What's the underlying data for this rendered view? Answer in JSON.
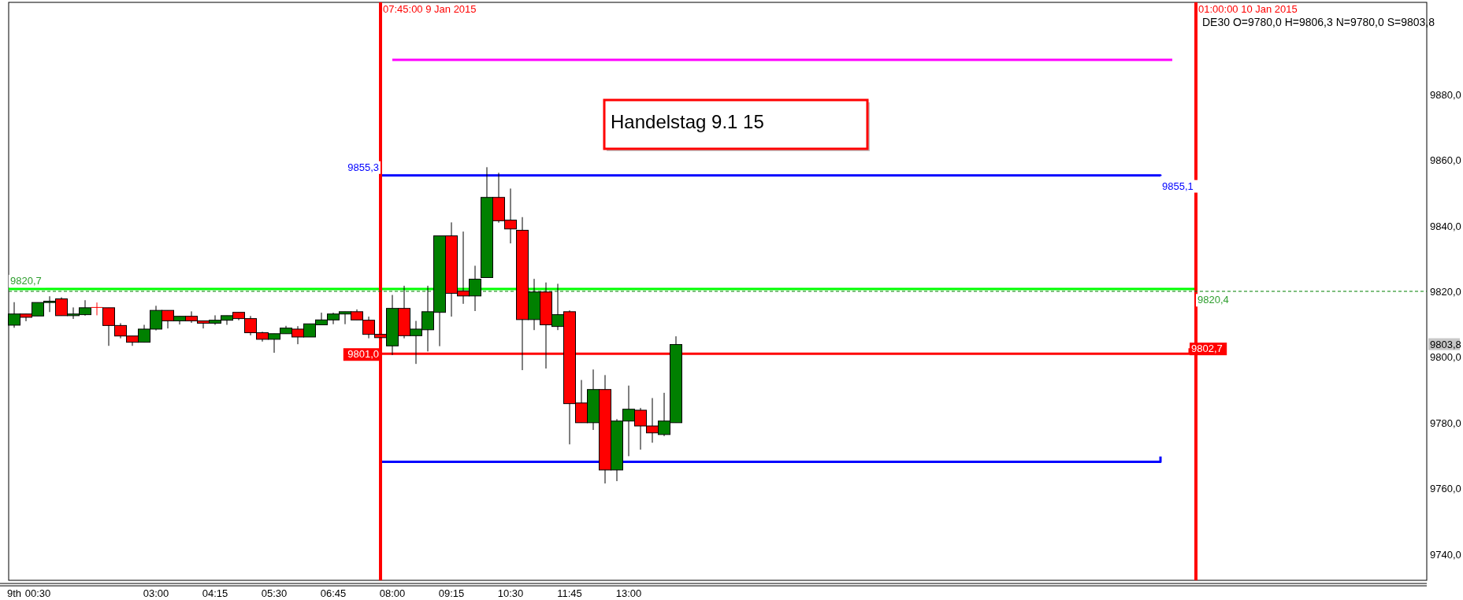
{
  "chart_data": {
    "type": "candlestick",
    "title": "DE30 O=9780,0 H=9806,3 N=9780,0 S=9803,8",
    "x": [
      "2015-01-09T00:00",
      "2015-01-09T00:15",
      "2015-01-09T00:30",
      "2015-01-09T00:45",
      "2015-01-09T01:00",
      "2015-01-09T01:15",
      "2015-01-09T01:30",
      "2015-01-09T01:45",
      "2015-01-09T02:00",
      "2015-01-09T02:15",
      "2015-01-09T02:30",
      "2015-01-09T02:45",
      "2015-01-09T03:00",
      "2015-01-09T03:15",
      "2015-01-09T03:30",
      "2015-01-09T03:45",
      "2015-01-09T04:00",
      "2015-01-09T04:15",
      "2015-01-09T04:30",
      "2015-01-09T04:45",
      "2015-01-09T05:00",
      "2015-01-09T05:15",
      "2015-01-09T05:30",
      "2015-01-09T05:45",
      "2015-01-09T06:00",
      "2015-01-09T06:15",
      "2015-01-09T06:30",
      "2015-01-09T06:45",
      "2015-01-09T07:00",
      "2015-01-09T07:15",
      "2015-01-09T07:30",
      "2015-01-09T07:45",
      "2015-01-09T08:00",
      "2015-01-09T08:15",
      "2015-01-09T08:30",
      "2015-01-09T08:45",
      "2015-01-09T09:00",
      "2015-01-09T09:15",
      "2015-01-09T09:30",
      "2015-01-09T09:45",
      "2015-01-09T10:00",
      "2015-01-09T10:15",
      "2015-01-09T10:30",
      "2015-01-09T10:45",
      "2015-01-09T11:00",
      "2015-01-09T11:15",
      "2015-01-09T11:30",
      "2015-01-09T11:45",
      "2015-01-09T12:00",
      "2015-01-09T12:15",
      "2015-01-09T12:30",
      "2015-01-09T12:45",
      "2015-01-09T13:00",
      "2015-01-09T13:15",
      "2015-01-09T13:30",
      "2015-01-09T13:45",
      "2015-01-09T14:00"
    ],
    "ohlc": [
      [
        9809.7,
        9816.7,
        9808.9,
        9813.1
      ],
      [
        9813.1,
        9813.1,
        9810.9,
        9812.1
      ],
      [
        9812.5,
        9816.6,
        9812.5,
        9816.6
      ],
      [
        9816.6,
        9818.5,
        9813.7,
        9817.0
      ],
      [
        9817.7,
        9818.2,
        9812.6,
        9812.6
      ],
      [
        9812.6,
        9815.1,
        9811.6,
        9813.1
      ],
      [
        9812.9,
        9817.3,
        9812.6,
        9815.0
      ],
      [
        9815.1,
        9816.6,
        9812.7,
        9815.1
      ],
      [
        9815.0,
        9815.0,
        9803.4,
        9809.6
      ],
      [
        9809.6,
        9810.3,
        9805.7,
        9806.4
      ],
      [
        9806.4,
        9806.4,
        9803.4,
        9804.5
      ],
      [
        9804.5,
        9809.8,
        9804.5,
        9808.5
      ],
      [
        9808.5,
        9815.6,
        9808.1,
        9814.2
      ],
      [
        9814.2,
        9814.2,
        9808.7,
        9811.0
      ],
      [
        9811.0,
        9812.4,
        9809.9,
        9812.4
      ],
      [
        9812.4,
        9813.9,
        9810.4,
        9811.0
      ],
      [
        9811.0,
        9811.0,
        9808.7,
        9810.3
      ],
      [
        9810.3,
        9812.7,
        9809.8,
        9811.2
      ],
      [
        9811.2,
        9812.6,
        9809.8,
        9812.6
      ],
      [
        9813.6,
        9813.6,
        9811.2,
        9811.7
      ],
      [
        9811.7,
        9812.5,
        9806.6,
        9807.4
      ],
      [
        9807.4,
        9807.7,
        9804.7,
        9805.4
      ],
      [
        9805.4,
        9807.1,
        9801.3,
        9807.1
      ],
      [
        9807.1,
        9809.5,
        9807.1,
        9808.8
      ],
      [
        9808.5,
        9809.4,
        9803.9,
        9806.1
      ],
      [
        9806.1,
        9810.1,
        9806.1,
        9810.1
      ],
      [
        9809.8,
        9813.5,
        9809.8,
        9811.3
      ],
      [
        9811.3,
        9813.5,
        9810.0,
        9813.1
      ],
      [
        9813.1,
        9813.8,
        9810.0,
        9813.8
      ],
      [
        9813.8,
        9814.5,
        9811.3,
        9811.3
      ],
      [
        9811.2,
        9812.3,
        9805.7,
        9806.9
      ],
      [
        9806.9,
        9806.9,
        9805.9,
        9805.9
      ],
      [
        9803.4,
        9818.9,
        9800.6,
        9814.8
      ],
      [
        9814.8,
        9821.7,
        9805.7,
        9806.5
      ],
      [
        9806.5,
        9811.0,
        9797.9,
        9808.5
      ],
      [
        9808.3,
        9821.7,
        9801.7,
        9813.8
      ],
      [
        9813.6,
        9836.9,
        9803.3,
        9836.9
      ],
      [
        9836.9,
        9841.0,
        9812.3,
        9819.4
      ],
      [
        9820.1,
        9838.2,
        9816.2,
        9818.6
      ],
      [
        9818.6,
        9827.8,
        9814.0,
        9823.7
      ],
      [
        9824.2,
        9857.8,
        9824.2,
        9848.6
      ],
      [
        9848.6,
        9856.1,
        9840.9,
        9841.5
      ],
      [
        9841.7,
        9851.3,
        9834.6,
        9839.0
      ],
      [
        9838.6,
        9842.6,
        9796.0,
        9811.4
      ],
      [
        9811.4,
        9823.8,
        9808.2,
        9819.8
      ],
      [
        9819.8,
        9822.7,
        9796.5,
        9809.8
      ],
      [
        9809.3,
        9822.3,
        9808.2,
        9812.9
      ],
      [
        9813.8,
        9814.2,
        9773.4,
        9785.8
      ],
      [
        9786.0,
        9793.0,
        9780.0,
        9780.0
      ],
      [
        9780.0,
        9796.2,
        9777.8,
        9790.1
      ],
      [
        9790.1,
        9794.5,
        9761.5,
        9765.6
      ],
      [
        9765.6,
        9781.1,
        9762.2,
        9780.5
      ],
      [
        9780.5,
        9791.3,
        9769.8,
        9784.1
      ],
      [
        9783.8,
        9784.5,
        9771.8,
        9779.0
      ],
      [
        9779.0,
        9787.5,
        9773.9,
        9776.9
      ],
      [
        9776.4,
        9789.1,
        9775.9,
        9780.5
      ],
      [
        9780.0,
        9806.3,
        9780.0,
        9803.8
      ]
    ],
    "series": [
      {
        "type": "line",
        "color": "#ff00ff",
        "x": [
          "2015-01-09T08:00",
          "2015-01-10T00:30"
        ],
        "values": [
          9890.5,
          9890.5
        ]
      },
      {
        "type": "line",
        "color": "#0000ff",
        "x": [
          "2015-01-09T07:45",
          "2015-01-10T00:15"
        ],
        "values": [
          9855.3,
          9855.1
        ]
      },
      {
        "type": "line",
        "color": "#00ff00",
        "x": [
          "2015-01-08T23:53",
          "2015-01-10T01:00"
        ],
        "values": [
          9820.7,
          9820.4
        ]
      },
      {
        "type": "line",
        "color": "#ff0000",
        "x": [
          "2015-01-09T07:45",
          "2015-01-10T00:52"
        ],
        "values": [
          9801.0,
          9802.7
        ]
      },
      {
        "type": "line",
        "color": "#0000ff",
        "x": [
          "2015-01-09T07:45",
          "2015-01-10T00:15"
        ],
        "values": [
          9768.1,
          9769.7
        ]
      }
    ],
    "xlim": [
      "2015-01-08T23:53",
      "2015-01-10T05:53"
    ],
    "ylim": [
      9732,
      9908
    ],
    "xticks": [
      {
        "value": "2015-01-09T00:00",
        "label": "9th"
      },
      {
        "value": "2015-01-09T00:30",
        "label": "00:30"
      },
      {
        "value": "2015-01-09T03:00",
        "label": "03:00"
      },
      {
        "value": "2015-01-09T04:15",
        "label": "04:15"
      },
      {
        "value": "2015-01-09T05:30",
        "label": "05:30"
      },
      {
        "value": "2015-01-09T06:45",
        "label": "06:45"
      },
      {
        "value": "2015-01-09T08:00",
        "label": "08:00"
      },
      {
        "value": "2015-01-09T09:15",
        "label": "09:15"
      },
      {
        "value": "2015-01-09T10:30",
        "label": "10:30"
      },
      {
        "value": "2015-01-09T11:45",
        "label": "11:45"
      },
      {
        "value": "2015-01-09T13:00",
        "label": "13:00"
      }
    ],
    "yticks": [
      {
        "value": 9740,
        "label": "9740,0"
      },
      {
        "value": 9760,
        "label": "9760,0"
      },
      {
        "value": 9780,
        "label": "9780,0"
      },
      {
        "value": 9800,
        "label": "9800,0"
      },
      {
        "value": 9820,
        "label": "9820,0"
      },
      {
        "value": 9840,
        "label": "9840,0"
      },
      {
        "value": 9860,
        "label": "9860,0"
      },
      {
        "value": 9880,
        "label": "9880,0"
      }
    ],
    "ref_lines": [
      {
        "axis": "x",
        "value": "2015-01-09T07:45",
        "label": "07:45:00 9 Jan 2015",
        "color": "#ff0000"
      },
      {
        "axis": "x",
        "value": "2015-01-10T01:00",
        "label": "01:00:00 10 Jan 2015",
        "color": "#ff0000"
      },
      {
        "axis": "y",
        "value": 9820,
        "label": null,
        "color": "#008000",
        "line_style": "dashed"
      }
    ],
    "annotations": [
      "Handelstag 9.1 15",
      {
        "text": "9855,3",
        "x": "2015-01-09T07:45",
        "y": 9855.3
      },
      {
        "text": "9855,1",
        "x": "2015-01-10T00:15",
        "y": 9855.1
      },
      {
        "text": "9820,7",
        "x": "2015-01-08T23:53",
        "y": 9820.7
      },
      {
        "text": "9820,4",
        "x": "2015-01-10T01:00",
        "y": 9820.4
      },
      {
        "text": "9801,0",
        "x": "2015-01-09T07:45",
        "y": 9801.0
      },
      {
        "text": "9802,7",
        "x": "2015-01-10T00:52",
        "y": 9802.7
      },
      {
        "text": "9803,8",
        "y": 9803.8
      }
    ],
    "grid": false
  }
}
